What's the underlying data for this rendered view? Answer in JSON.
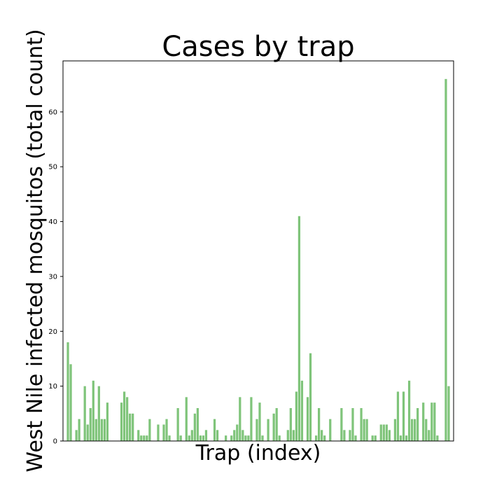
{
  "chart_data": {
    "type": "bar",
    "title": "Cases by trap",
    "xlabel": "Trap (index)",
    "ylabel": "West Nile infected mosquitos (total count)",
    "ylim": [
      0,
      69.3
    ],
    "yticks": [
      0,
      10,
      20,
      30,
      40,
      50,
      60
    ],
    "grid": false,
    "bar_color": "#7fc47a",
    "values": [
      18,
      14,
      0,
      2,
      4,
      0,
      10,
      3,
      6,
      11,
      4,
      10,
      4,
      4,
      7,
      0,
      0,
      0,
      0,
      7,
      9,
      8,
      5,
      5,
      0,
      2,
      1,
      1,
      1,
      4,
      0,
      0,
      3,
      0,
      3,
      4,
      1,
      0,
      0,
      6,
      1,
      0,
      8,
      1,
      2,
      5,
      6,
      1,
      1,
      2,
      0,
      0,
      4,
      2,
      0,
      0,
      1,
      0,
      1,
      2,
      3,
      8,
      2,
      1,
      1,
      8,
      0,
      4,
      7,
      1,
      0,
      4,
      0,
      5,
      6,
      1,
      0,
      0,
      2,
      6,
      2,
      9,
      41,
      11,
      0,
      8,
      16,
      0,
      1,
      6,
      2,
      1,
      0,
      4,
      0,
      0,
      0,
      6,
      2,
      0,
      2,
      6,
      1,
      0,
      6,
      4,
      4,
      0,
      1,
      1,
      0,
      3,
      3,
      3,
      2,
      0,
      4,
      9,
      1,
      9,
      1,
      11,
      4,
      4,
      6,
      0,
      7,
      4,
      2,
      7,
      7,
      1,
      0,
      0,
      66,
      10
    ]
  }
}
